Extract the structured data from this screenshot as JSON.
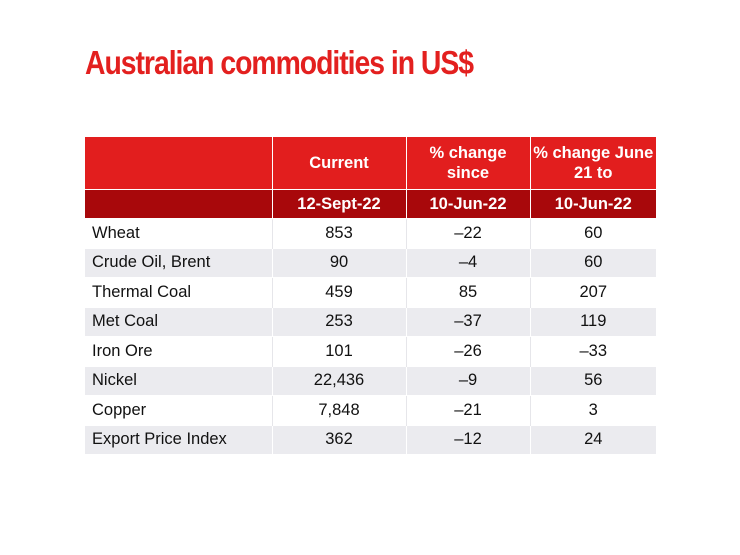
{
  "title": "Australian commodities in US$",
  "table": {
    "header_row1": [
      "",
      "Current",
      "% change since",
      "% change June 21 to"
    ],
    "header_row2": [
      "",
      "12-Sept-22",
      "10-Jun-22",
      "10-Jun-22"
    ],
    "rows": [
      {
        "name": "Wheat",
        "current": "853",
        "change_since": "–22",
        "change_june21": "60"
      },
      {
        "name": "Crude Oil, Brent",
        "current": "90",
        "change_since": "–4",
        "change_june21": "60"
      },
      {
        "name": "Thermal Coal",
        "current": "459",
        "change_since": "85",
        "change_june21": "207"
      },
      {
        "name": "Met Coal",
        "current": "253",
        "change_since": "–37",
        "change_june21": "119"
      },
      {
        "name": "Iron Ore",
        "current": "101",
        "change_since": "–26",
        "change_june21": "–33"
      },
      {
        "name": "Nickel",
        "current": "22,436",
        "change_since": "–9",
        "change_june21": "56"
      },
      {
        "name": "Copper",
        "current": "7,848",
        "change_since": "–21",
        "change_june21": "3"
      },
      {
        "name": "Export Price Index",
        "current": "362",
        "change_since": "–12",
        "change_june21": "24"
      }
    ]
  },
  "colors": {
    "title": "#e3201f",
    "header_primary": "#e21e1e",
    "header_secondary": "#a8080b",
    "row_alt": "#ebebef"
  }
}
